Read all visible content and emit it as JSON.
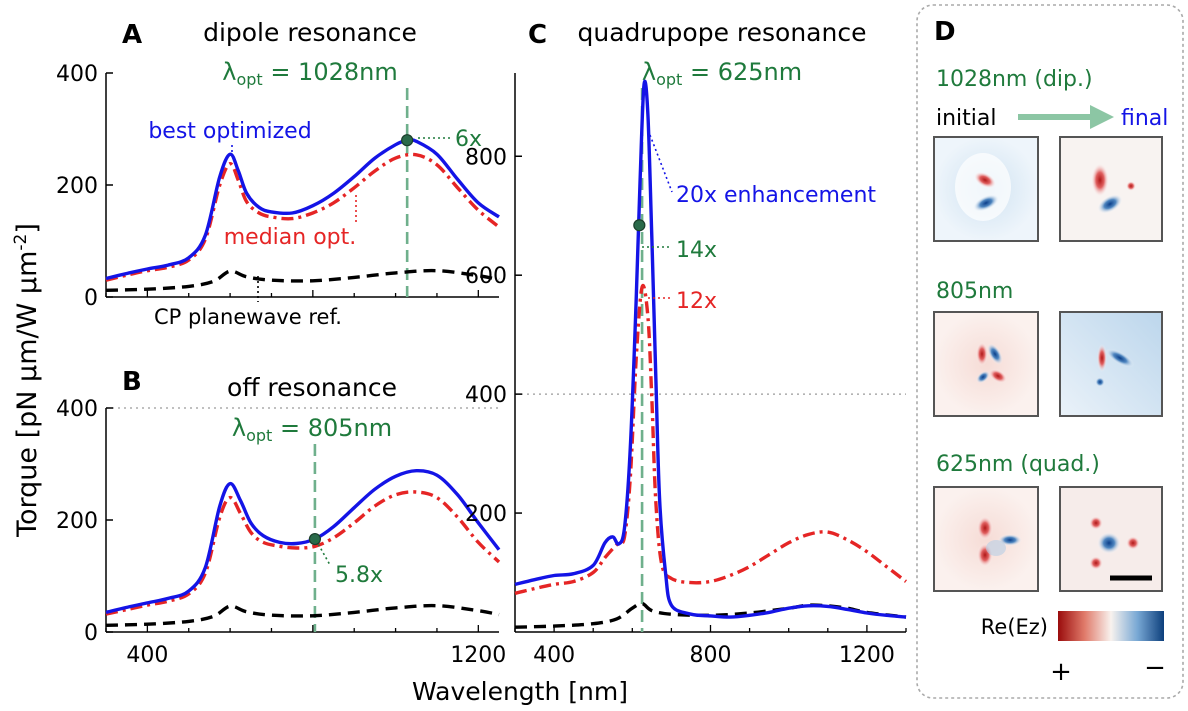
{
  "colors": {
    "blue": "#1414e6",
    "red": "#e52525",
    "black": "#000000",
    "green_text": "#1f7a3c",
    "green_line": "#6fb08c",
    "marker_fill": "#2a6a4a",
    "grid": "#9a9a9a",
    "frame": "#aaaaaa",
    "arrow": "#8cc6a4"
  },
  "shared": {
    "ylabel_main": "Torque [pN μm/W μm",
    "ylabel_exp": "-2",
    "ylabel_close": "]",
    "xlabel": "Wavelength [nm]"
  },
  "panels": {
    "A": {
      "letter": "A",
      "title": "dipole resonance",
      "lambda_sym": "λ",
      "lambda_sub": "opt",
      "lambda_val": " = 1028nm",
      "label_best": "best optimized",
      "label_median": "median opt.",
      "label_ref": "CP planewave ref.",
      "label_factor": "6x"
    },
    "B": {
      "letter": "B",
      "title": "off resonance",
      "lambda_sym": "λ",
      "lambda_sub": "opt",
      "lambda_val": " = 805nm",
      "label_factor": "5.8x"
    },
    "C": {
      "letter": "C",
      "title": "quadrupope resonance",
      "lambda_sym": "λ",
      "lambda_sub": "opt",
      "lambda_val": " = 625nm",
      "label_best": "20x enhancement",
      "label_factor": "14x",
      "label_median": "12x"
    },
    "D": {
      "letter": "D",
      "rows": [
        {
          "label": "1028nm (dip.)"
        },
        {
          "label": "805nm"
        },
        {
          "label": "625nm (quad.)"
        }
      ],
      "initial_label": "initial",
      "final_label": "final",
      "colorbar_label": "Re(Ez)",
      "colorbar_plus": "+",
      "colorbar_minus": "−"
    }
  },
  "chart_data": [
    {
      "panel": "A",
      "type": "line",
      "title": "dipole resonance",
      "xlabel": "Wavelength [nm]",
      "ylabel": "Torque [pN μm/W μm^-2]",
      "xlim": [
        300,
        1250
      ],
      "ylim": [
        0,
        400
      ],
      "yticks": [
        0,
        200,
        400
      ],
      "ytick_labels": [
        "0",
        "200",
        "400"
      ],
      "xticks": [
        400,
        1200
      ],
      "highlight_x": 1028,
      "marker": {
        "x": 1028,
        "y": 280,
        "label": "6x"
      },
      "series": [
        {
          "name": "best optimized",
          "color": "blue",
          "style": "solid",
          "x": [
            300,
            350,
            400,
            450,
            500,
            540,
            575,
            600,
            620,
            640,
            670,
            700,
            750,
            800,
            850,
            900,
            950,
            1000,
            1028,
            1050,
            1100,
            1150,
            1200,
            1250
          ],
          "y": [
            33,
            42,
            50,
            57,
            70,
            110,
            215,
            255,
            225,
            185,
            160,
            152,
            150,
            163,
            185,
            215,
            248,
            272,
            280,
            278,
            255,
            210,
            168,
            143
          ]
        },
        {
          "name": "median opt.",
          "color": "red",
          "style": "dashdot",
          "x": [
            300,
            350,
            400,
            450,
            500,
            540,
            575,
            600,
            620,
            640,
            670,
            700,
            750,
            800,
            850,
            900,
            950,
            1000,
            1050,
            1100,
            1150,
            1200,
            1250
          ],
          "y": [
            30,
            39,
            47,
            53,
            66,
            103,
            200,
            238,
            208,
            170,
            150,
            143,
            140,
            150,
            168,
            195,
            225,
            248,
            254,
            236,
            195,
            155,
            125
          ]
        },
        {
          "name": "CP planewave ref.",
          "color": "black",
          "style": "dashed",
          "x": [
            300,
            400,
            500,
            560,
            600,
            640,
            700,
            800,
            900,
            1000,
            1100,
            1200,
            1250
          ],
          "y": [
            12,
            14,
            19,
            28,
            46,
            36,
            30,
            29,
            35,
            43,
            47,
            38,
            31
          ]
        }
      ]
    },
    {
      "panel": "B",
      "type": "line",
      "title": "off resonance",
      "xlabel": "Wavelength [nm]",
      "ylim": [
        0,
        400
      ],
      "xlim": [
        300,
        1250
      ],
      "yticks": [
        0,
        200,
        400
      ],
      "ytick_labels": [
        "0",
        "200",
        "400"
      ],
      "xticks": [
        400,
        1200
      ],
      "xtick_labels": [
        "400",
        "1200"
      ],
      "highlight_x": 805,
      "marker": {
        "x": 805,
        "y": 166,
        "label": "5.8x"
      },
      "series": [
        {
          "name": "best optimized",
          "color": "blue",
          "style": "solid",
          "x": [
            300,
            350,
            400,
            450,
            500,
            540,
            575,
            600,
            625,
            650,
            680,
            720,
            760,
            805,
            850,
            900,
            950,
            1000,
            1050,
            1100,
            1150,
            1200,
            1250
          ],
          "y": [
            35,
            44,
            52,
            60,
            73,
            115,
            225,
            265,
            235,
            195,
            172,
            160,
            158,
            166,
            188,
            222,
            255,
            278,
            288,
            280,
            245,
            195,
            147
          ]
        },
        {
          "name": "median opt.",
          "color": "red",
          "style": "dashdot",
          "x": [
            300,
            350,
            400,
            450,
            500,
            540,
            575,
            600,
            625,
            650,
            680,
            720,
            760,
            805,
            850,
            900,
            950,
            1000,
            1050,
            1100,
            1150,
            1200,
            1250
          ],
          "y": [
            32,
            40,
            48,
            55,
            68,
            105,
            205,
            240,
            212,
            178,
            160,
            153,
            150,
            153,
            168,
            195,
            225,
            245,
            250,
            240,
            205,
            160,
            125
          ]
        },
        {
          "name": "CP planewave ref.",
          "color": "black",
          "style": "dashed",
          "x": [
            300,
            400,
            500,
            560,
            600,
            640,
            700,
            800,
            900,
            1000,
            1100,
            1200,
            1250
          ],
          "y": [
            12,
            14,
            19,
            28,
            46,
            36,
            30,
            29,
            35,
            43,
            47,
            38,
            31
          ]
        }
      ]
    },
    {
      "panel": "C",
      "type": "line",
      "title": "quadrupope resonance",
      "xlabel": "Wavelength [nm]",
      "xlim": [
        300,
        1300
      ],
      "ylim": [
        0,
        940
      ],
      "yticks": [
        200,
        400,
        600,
        800
      ],
      "ytick_labels": [
        "200",
        "400",
        "600",
        "800"
      ],
      "xticks": [
        400,
        800,
        1200
      ],
      "xtick_labels": [
        "400",
        "800",
        "1200"
      ],
      "highlight_x": 625,
      "marker": {
        "x": 618,
        "y": 684,
        "label": "14x"
      },
      "series": [
        {
          "name": "best optimized",
          "color": "blue",
          "style": "solid",
          "x": [
            300,
            350,
            400,
            450,
            500,
            530,
            550,
            565,
            580,
            595,
            610,
            620,
            630,
            640,
            650,
            660,
            670,
            685,
            700,
            750,
            800,
            850,
            900,
            950,
            1000,
            1050,
            1100,
            1150,
            1200,
            1250,
            1300
          ],
          "y": [
            80,
            88,
            95,
            98,
            112,
            150,
            160,
            148,
            175,
            310,
            560,
            760,
            920,
            870,
            660,
            430,
            220,
            100,
            45,
            30,
            27,
            25,
            28,
            33,
            40,
            44,
            43,
            38,
            32,
            28,
            25
          ]
        },
        {
          "name": "median opt.",
          "color": "red",
          "style": "dashdot",
          "x": [
            300,
            350,
            400,
            450,
            500,
            530,
            550,
            565,
            580,
            595,
            610,
            625,
            640,
            650,
            660,
            675,
            700,
            750,
            800,
            850,
            900,
            950,
            1000,
            1050,
            1100,
            1150,
            1200,
            1250,
            1300
          ],
          "y": [
            65,
            73,
            80,
            85,
            100,
            125,
            140,
            150,
            160,
            260,
            460,
            580,
            530,
            390,
            220,
            115,
            90,
            83,
            85,
            95,
            110,
            130,
            150,
            164,
            168,
            155,
            135,
            110,
            85
          ]
        },
        {
          "name": "CP planewave ref.",
          "color": "black",
          "style": "dashed",
          "x": [
            300,
            400,
            500,
            560,
            600,
            625,
            650,
            700,
            800,
            900,
            1000,
            1050,
            1100,
            1150,
            1200,
            1300
          ],
          "y": [
            8,
            10,
            14,
            22,
            40,
            48,
            36,
            30,
            28,
            32,
            40,
            45,
            44,
            40,
            33,
            25
          ]
        }
      ]
    }
  ]
}
